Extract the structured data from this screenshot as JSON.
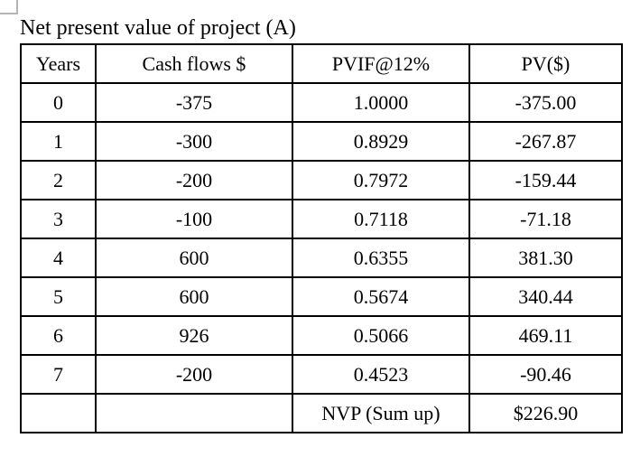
{
  "title": "Net present value of project (A)",
  "colors": {
    "background": "#ffffff",
    "text": "#000000",
    "table_border": "#000000",
    "corner_marker_border": "#b4b4b4"
  },
  "table": {
    "headers": [
      "Years",
      "Cash flows $",
      "PVIF@12%",
      "PV($)"
    ],
    "rows": [
      [
        "0",
        "-375",
        "1.0000",
        "-375.00"
      ],
      [
        "1",
        "-300",
        "0.8929",
        "-267.87"
      ],
      [
        "2",
        "-200",
        "0.7972",
        "-159.44"
      ],
      [
        "3",
        "-100",
        "0.7118",
        "-71.18"
      ],
      [
        "4",
        "600",
        "0.6355",
        "381.30"
      ],
      [
        "5",
        "600",
        "0.5674",
        "340.44"
      ],
      [
        "6",
        "926",
        "0.5066",
        "469.11"
      ],
      [
        "7",
        "-200",
        "0.4523",
        "-90.46"
      ],
      [
        "",
        "",
        "NVP (Sum up)",
        "$226.90"
      ]
    ]
  }
}
